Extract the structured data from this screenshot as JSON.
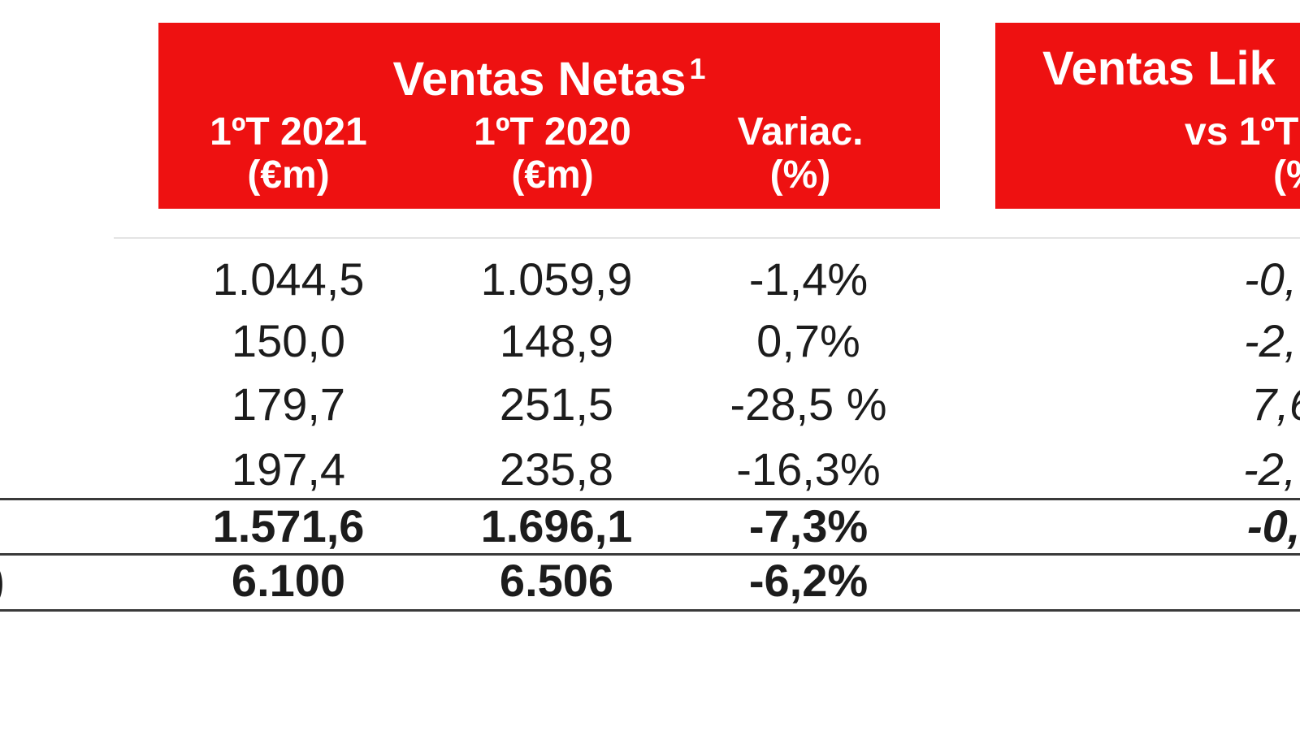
{
  "accent_color": "#ee1111",
  "table_netas": {
    "title": "Ventas Netas",
    "title_superscript": "1",
    "columns": [
      {
        "line1": "1ºT 2021",
        "line2": "(€m)"
      },
      {
        "line1": "1ºT 2020",
        "line2": "(€m)"
      },
      {
        "line1": "Variac.",
        "line2": "(%)"
      }
    ],
    "rows": [
      {
        "v2021": "1.044,5",
        "v2020": "1.059,9",
        "variac": "-1,4%",
        "bold": false
      },
      {
        "v2021": "150,0",
        "v2020": "148,9",
        "variac": "0,7%",
        "bold": false
      },
      {
        "v2021": "179,7",
        "v2020": "251,5",
        "variac": "-28,5 %",
        "bold": false
      },
      {
        "v2021": "197,4",
        "v2020": "235,8",
        "variac": "-16,3%",
        "bold": false
      },
      {
        "v2021": "1.571,6",
        "v2020": "1.696,1",
        "variac": "-7,3%",
        "bold": true
      },
      {
        "v2021": "6.100",
        "v2020": "6.506",
        "variac": "-6,2%",
        "bold": true,
        "label_fragment": ")"
      }
    ]
  },
  "table_lfl": {
    "title_fragment": "Ventas Lik",
    "subheader_line1_fragment": "vs 1ºT",
    "subheader_line2_fragment": "(%",
    "values": [
      "-0,",
      "-2,",
      "7,6",
      "-2,",
      "-0,"
    ]
  }
}
